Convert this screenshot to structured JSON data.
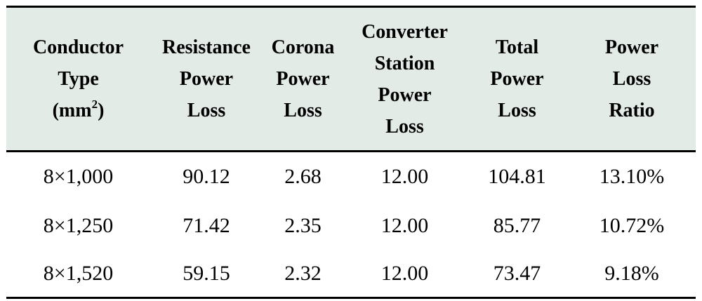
{
  "table": {
    "headers": [
      [
        "Conductor",
        "Type",
        "(mm",
        "2",
        ")"
      ],
      [
        "Resistance",
        "Power",
        "Loss"
      ],
      [
        "Corona",
        "Power",
        "Loss"
      ],
      [
        "Converter",
        "Station",
        "Power",
        "Loss"
      ],
      [
        "Total",
        "Power",
        "Loss"
      ],
      [
        "Power",
        "Loss",
        "Ratio"
      ]
    ],
    "rows": [
      [
        "8×1,000",
        "90.12",
        "2.68",
        "12.00",
        "104.81",
        "13.10%"
      ],
      [
        "8×1,250",
        "71.42",
        "2.35",
        "12.00",
        "85.77",
        "10.72%"
      ],
      [
        "8×1,520",
        "59.15",
        "2.32",
        "12.00",
        "73.47",
        "9.18%"
      ]
    ]
  }
}
